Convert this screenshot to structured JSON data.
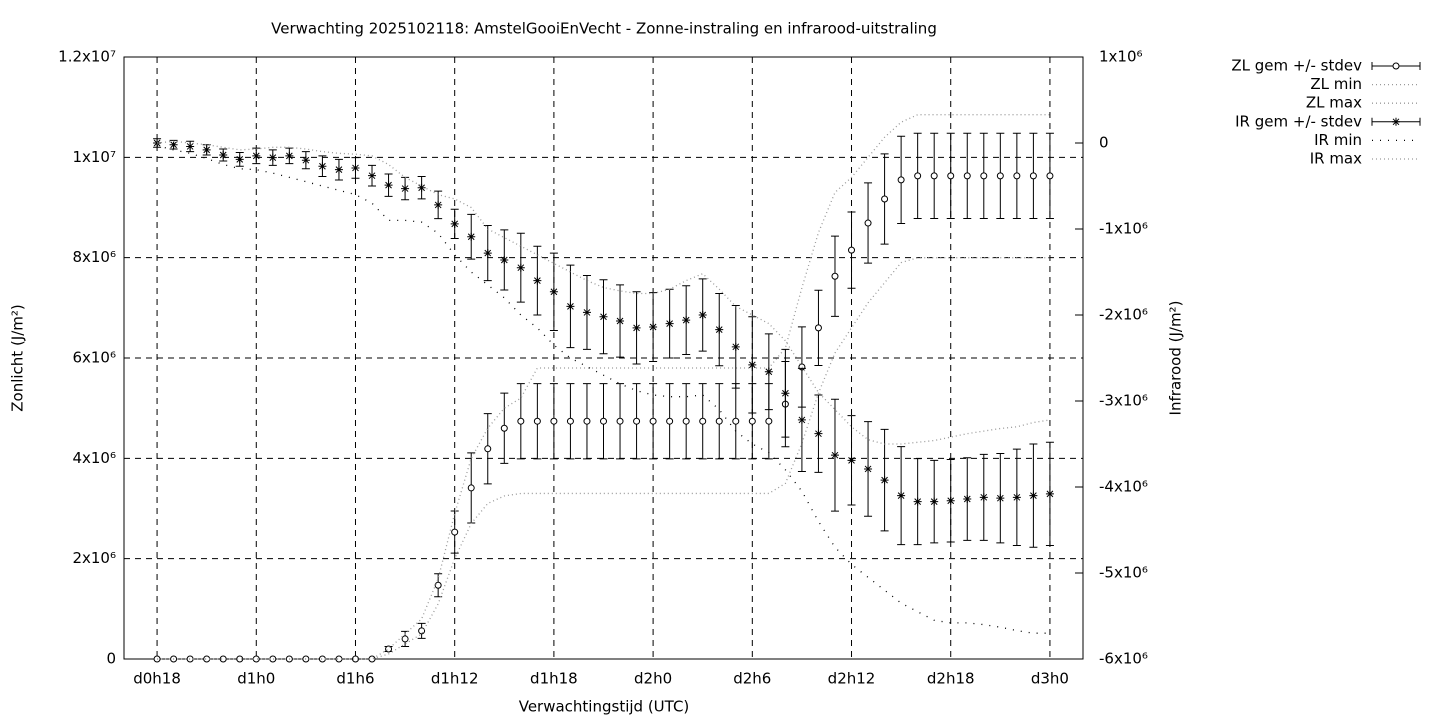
{
  "chart_data": {
    "type": "errorbar-line",
    "title": "Verwachting 2025102118: AmstelGooiEnVecht - Zonne-instraling en infrarood-uitstraling",
    "x_label": "Verwachtingstijd (UTC)",
    "y_label": "Zonlicht (J/m²)",
    "y2_label": "Infrarood (J/m²)",
    "grid": true,
    "legend": "outside-top-right",
    "xlim": [
      16,
      74
    ],
    "xticks": [
      {
        "value": 18,
        "label": "d0h18"
      },
      {
        "value": 24,
        "label": "d1h0"
      },
      {
        "value": 30,
        "label": "d1h6"
      },
      {
        "value": 36,
        "label": "d1h12"
      },
      {
        "value": 42,
        "label": "d1h18"
      },
      {
        "value": 48,
        "label": "d2h0"
      },
      {
        "value": 54,
        "label": "d2h6"
      },
      {
        "value": 60,
        "label": "d2h12"
      },
      {
        "value": 66,
        "label": "d2h18"
      },
      {
        "value": 72,
        "label": "d3h0"
      }
    ],
    "ylim": [
      0,
      12000000
    ],
    "yticks": [
      0,
      {
        "value": 2000000,
        "label": "2x10⁶"
      },
      {
        "value": 4000000,
        "label": "4x10⁶"
      },
      {
        "value": 6000000,
        "label": "6x10⁶"
      },
      {
        "value": 8000000,
        "label": "8x10⁶"
      },
      {
        "value": 10000000,
        "label": "1x10⁷"
      },
      {
        "value": 12000000,
        "label": "1.2x10⁷"
      }
    ],
    "y2lim": [
      -6000000,
      1000000
    ],
    "y2ticks": [
      {
        "value": -6000000,
        "label": "-6x10⁶"
      },
      {
        "value": -5000000,
        "label": "-5x10⁶"
      },
      {
        "value": -4000000,
        "label": "-4x10⁶"
      },
      {
        "value": -3000000,
        "label": "-3x10⁶"
      },
      {
        "value": -2000000,
        "label": "-2x10⁶"
      },
      {
        "value": -1000000,
        "label": "-1x10⁶"
      },
      0,
      {
        "value": 1000000,
        "label": "1x10⁶"
      }
    ],
    "x": [
      18,
      19,
      20,
      21,
      22,
      23,
      24,
      25,
      26,
      27,
      28,
      29,
      30,
      31,
      32,
      33,
      34,
      35,
      36,
      37,
      38,
      39,
      40,
      41,
      42,
      43,
      44,
      45,
      46,
      47,
      48,
      49,
      50,
      51,
      52,
      53,
      54,
      55,
      56,
      57,
      58,
      59,
      60,
      61,
      62,
      63,
      64,
      65,
      66,
      67,
      68,
      69,
      70,
      71,
      72
    ],
    "series": [
      {
        "name": "ZL gem +/- stdev",
        "marker": "circle",
        "color": "#000000",
        "axis": "y",
        "values": [
          0,
          0,
          0,
          0,
          0,
          0,
          0,
          0,
          0,
          0,
          0,
          0,
          0,
          0,
          200000,
          400000,
          560000,
          1470000,
          2530000,
          3410000,
          4190000,
          4600000,
          4740000,
          4740000,
          4740000,
          4740000,
          4740000,
          4740000,
          4740000,
          4740000,
          4740000,
          4740000,
          4740000,
          4740000,
          4740000,
          4740000,
          4740000,
          4740000,
          5080000,
          5820000,
          6600000,
          7630000,
          8150000,
          8690000,
          9170000,
          9550000,
          9630000,
          9630000,
          9630000,
          9630000,
          9630000,
          9630000,
          9630000,
          9630000,
          9630000
        ],
        "errors": [
          0,
          0,
          0,
          0,
          0,
          0,
          0,
          0,
          0,
          0,
          0,
          0,
          0,
          0,
          50000,
          150000,
          150000,
          230000,
          420000,
          700000,
          700000,
          700000,
          750000,
          750000,
          750000,
          750000,
          750000,
          750000,
          750000,
          750000,
          750000,
          750000,
          750000,
          750000,
          750000,
          750000,
          750000,
          750000,
          850000,
          800000,
          750000,
          800000,
          760000,
          800000,
          900000,
          870000,
          850000,
          850000,
          850000,
          850000,
          850000,
          850000,
          850000,
          850000,
          850000
        ]
      },
      {
        "name": "ZL min",
        "color": "#999999",
        "dash": "1,3",
        "axis": "y",
        "values": [
          0,
          0,
          0,
          0,
          0,
          0,
          0,
          0,
          0,
          0,
          0,
          0,
          0,
          0,
          100000,
          300000,
          500000,
          1100000,
          2000000,
          2700000,
          3100000,
          3250000,
          3300000,
          3300000,
          3300000,
          3300000,
          3300000,
          3300000,
          3300000,
          3300000,
          3300000,
          3300000,
          3300000,
          3300000,
          3300000,
          3300000,
          3300000,
          3300000,
          3500000,
          4300000,
          5300000,
          6100000,
          6600000,
          7100000,
          7500000,
          7900000,
          8000000,
          8000000,
          8000000,
          8000000,
          8000000,
          8000000,
          8000000,
          8000000,
          8000000
        ]
      },
      {
        "name": "ZL max",
        "color": "#999999",
        "dash": "1,3",
        "axis": "y",
        "values": [
          0,
          0,
          0,
          0,
          0,
          0,
          0,
          0,
          0,
          0,
          0,
          0,
          0,
          0,
          200000,
          500000,
          800000,
          1600000,
          2900000,
          4000000,
          4600000,
          5000000,
          5200000,
          5800000,
          5800000,
          5800000,
          5800000,
          5800000,
          5800000,
          5800000,
          5800000,
          5800000,
          5800000,
          5800000,
          5800000,
          5800000,
          5800000,
          5800000,
          6200000,
          7400000,
          8500000,
          9300000,
          9600000,
          10000000,
          10400000,
          10700000,
          10850000,
          10850000,
          10850000,
          10850000,
          10850000,
          10850000,
          10850000,
          10850000,
          10850000
        ]
      },
      {
        "name": "IR gem +/- stdev",
        "marker": "star",
        "color": "#000000",
        "axis": "y2",
        "values": [
          0,
          -20000,
          -40000,
          -80000,
          -140000,
          -190000,
          -150000,
          -170000,
          -150000,
          -200000,
          -270000,
          -310000,
          -290000,
          -380000,
          -490000,
          -530000,
          -520000,
          -720000,
          -940000,
          -1090000,
          -1280000,
          -1360000,
          -1450000,
          -1600000,
          -1730000,
          -1900000,
          -1970000,
          -2020000,
          -2070000,
          -2150000,
          -2140000,
          -2100000,
          -2060000,
          -2000000,
          -2170000,
          -2370000,
          -2580000,
          -2660000,
          -2910000,
          -3220000,
          -3380000,
          -3630000,
          -3690000,
          -3790000,
          -3920000,
          -4100000,
          -4170000,
          -4170000,
          -4160000,
          -4140000,
          -4120000,
          -4130000,
          -4120000,
          -4100000,
          -4080000
        ],
        "errors": [
          50000,
          50000,
          60000,
          60000,
          70000,
          80000,
          90000,
          90000,
          90000,
          100000,
          120000,
          120000,
          120000,
          120000,
          130000,
          130000,
          130000,
          160000,
          170000,
          260000,
          320000,
          350000,
          400000,
          400000,
          450000,
          480000,
          430000,
          430000,
          420000,
          420000,
          400000,
          400000,
          400000,
          420000,
          420000,
          480000,
          560000,
          440000,
          510000,
          600000,
          450000,
          650000,
          520000,
          550000,
          590000,
          570000,
          500000,
          480000,
          480000,
          480000,
          500000,
          520000,
          560000,
          600000,
          600000
        ]
      },
      {
        "name": "IR min",
        "color": "#000000",
        "dash": "1,7",
        "axis": "y2",
        "values": [
          -30000,
          -80000,
          -120000,
          -180000,
          -250000,
          -300000,
          -310000,
          -350000,
          -400000,
          -450000,
          -500000,
          -550000,
          -600000,
          -700000,
          -900000,
          -900000,
          -920000,
          -1050000,
          -1300000,
          -1500000,
          -1650000,
          -1800000,
          -2000000,
          -2150000,
          -2350000,
          -2500000,
          -2600000,
          -2700000,
          -2800000,
          -2880000,
          -2930000,
          -2950000,
          -2950000,
          -2930000,
          -3100000,
          -3350000,
          -3500000,
          -3600000,
          -3800000,
          -4050000,
          -4400000,
          -4700000,
          -4900000,
          -5050000,
          -5200000,
          -5350000,
          -5450000,
          -5550000,
          -5580000,
          -5580000,
          -5600000,
          -5630000,
          -5670000,
          -5700000,
          -5700000
        ]
      },
      {
        "name": "IR max",
        "color": "#999999",
        "dash": "1,3",
        "axis": "y2",
        "values": [
          0,
          20000,
          0,
          -20000,
          -50000,
          -80000,
          -70000,
          -50000,
          -50000,
          -70000,
          -100000,
          -120000,
          -130000,
          -150000,
          -250000,
          -400000,
          -500000,
          -600000,
          -650000,
          -750000,
          -1000000,
          -1100000,
          -1200000,
          -1300000,
          -1400000,
          -1500000,
          -1600000,
          -1680000,
          -1720000,
          -1750000,
          -1750000,
          -1700000,
          -1600000,
          -1520000,
          -1700000,
          -1900000,
          -2000000,
          -2100000,
          -2300000,
          -2600000,
          -2900000,
          -3100000,
          -3300000,
          -3450000,
          -3500000,
          -3500000,
          -3480000,
          -3460000,
          -3420000,
          -3380000,
          -3350000,
          -3320000,
          -3300000,
          -3250000,
          -3220000
        ]
      }
    ]
  }
}
